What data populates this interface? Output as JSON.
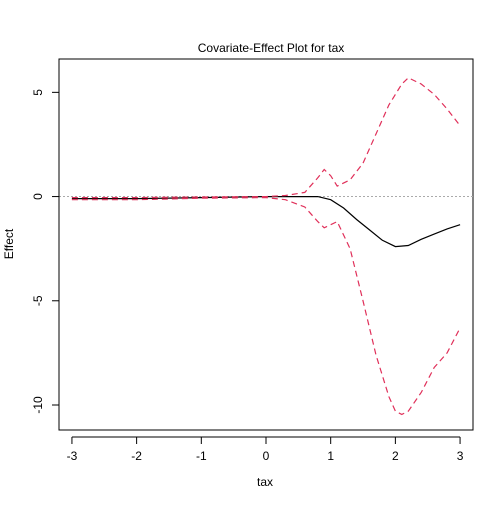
{
  "chart_data": {
    "type": "line",
    "title": "Covariate-Effect Plot for tax",
    "xlabel": "tax",
    "ylabel": "Effect",
    "xlim": [
      -3.2,
      3.2
    ],
    "ylim": [
      -11.2,
      6.6
    ],
    "x_ticks": [
      -3,
      -2,
      -1,
      0,
      1,
      2,
      3
    ],
    "x_tick_labels": [
      "-3",
      "-2",
      "-1",
      "0",
      "1",
      "2",
      "3"
    ],
    "y_ticks": [
      5,
      0,
      -5,
      -10
    ],
    "y_tick_labels": [
      "5",
      "0",
      "-5",
      "-10"
    ],
    "reference_line": {
      "y": 0,
      "style": "dotted",
      "color": "#aaaaaa"
    },
    "grid": false,
    "legend": "none",
    "series": [
      {
        "role": "effect",
        "color": "#000000",
        "style": "solid",
        "points": [
          [
            -3.0,
            -0.1
          ],
          [
            -2.0,
            -0.1
          ],
          [
            -1.0,
            -0.05
          ],
          [
            0.0,
            0.0
          ],
          [
            0.5,
            0.0
          ],
          [
            0.8,
            0.0
          ],
          [
            1.0,
            -0.15
          ],
          [
            1.2,
            -0.55
          ],
          [
            1.4,
            -1.1
          ],
          [
            1.6,
            -1.6
          ],
          [
            1.8,
            -2.1
          ],
          [
            2.0,
            -2.4
          ],
          [
            2.2,
            -2.35
          ],
          [
            2.4,
            -2.05
          ],
          [
            2.6,
            -1.8
          ],
          [
            2.8,
            -1.55
          ],
          [
            3.0,
            -1.35
          ]
        ]
      },
      {
        "role": "upper-band",
        "color": "#e0305a",
        "style": "dashed",
        "points": [
          [
            -3.0,
            -0.05
          ],
          [
            -2.0,
            -0.05
          ],
          [
            -1.0,
            -0.02
          ],
          [
            0.0,
            0.0
          ],
          [
            0.3,
            0.05
          ],
          [
            0.6,
            0.2
          ],
          [
            0.8,
            0.9
          ],
          [
            0.9,
            1.3
          ],
          [
            1.0,
            1.0
          ],
          [
            1.1,
            0.5
          ],
          [
            1.3,
            0.8
          ],
          [
            1.5,
            1.6
          ],
          [
            1.7,
            3.0
          ],
          [
            1.9,
            4.4
          ],
          [
            2.1,
            5.4
          ],
          [
            2.2,
            5.7
          ],
          [
            2.4,
            5.4
          ],
          [
            2.6,
            4.9
          ],
          [
            2.8,
            4.2
          ],
          [
            3.0,
            3.4
          ]
        ]
      },
      {
        "role": "lower-band",
        "color": "#e0305a",
        "style": "dashed",
        "points": [
          [
            -3.0,
            -0.15
          ],
          [
            -2.0,
            -0.15
          ],
          [
            -1.0,
            -0.08
          ],
          [
            0.0,
            -0.05
          ],
          [
            0.3,
            -0.15
          ],
          [
            0.6,
            -0.5
          ],
          [
            0.8,
            -1.2
          ],
          [
            0.9,
            -1.5
          ],
          [
            1.0,
            -1.35
          ],
          [
            1.1,
            -1.2
          ],
          [
            1.3,
            -2.5
          ],
          [
            1.5,
            -5.0
          ],
          [
            1.7,
            -7.6
          ],
          [
            1.9,
            -9.6
          ],
          [
            2.0,
            -10.3
          ],
          [
            2.1,
            -10.45
          ],
          [
            2.2,
            -10.3
          ],
          [
            2.4,
            -9.4
          ],
          [
            2.6,
            -8.2
          ],
          [
            2.8,
            -7.5
          ],
          [
            3.0,
            -6.3
          ]
        ]
      }
    ]
  }
}
